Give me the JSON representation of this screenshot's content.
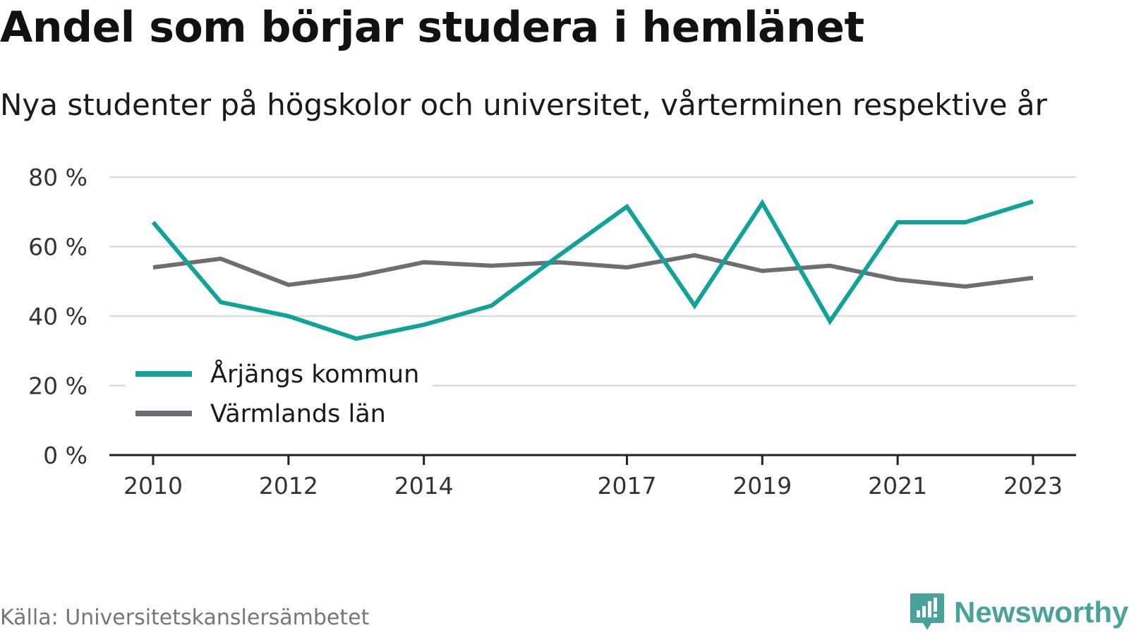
{
  "title": "Andel som börjar studera i hemlänet",
  "subtitle": "Nya studenter på högskolor och universitet, vårterminen respektive år",
  "source": "Källa: Universitetskanslersämbetet",
  "brand": "Newsworthy",
  "chart_data": {
    "type": "line",
    "x": [
      2010,
      2011,
      2012,
      2013,
      2014,
      2015,
      2016,
      2017,
      2018,
      2019,
      2020,
      2021,
      2022,
      2023
    ],
    "x_ticks": [
      "2010",
      "2012",
      "2014",
      "2017",
      "2019",
      "2021",
      "2023"
    ],
    "y_ticks": [
      "0 %",
      "20 %",
      "40 %",
      "60 %",
      "80 %"
    ],
    "ylim": [
      0,
      80
    ],
    "grid": true,
    "legend_position": "bottom-left",
    "series": [
      {
        "name": "Årjängs kommun",
        "color": "#12a398",
        "values": [
          67,
          44,
          40,
          33.5,
          37.5,
          43,
          57.5,
          71.5,
          43,
          72.5,
          38.5,
          67,
          67,
          73
        ]
      },
      {
        "name": "Värmlands län",
        "color": "#6e6d74",
        "values": [
          54,
          56.5,
          49,
          51.5,
          55.5,
          54.5,
          55.5,
          54,
          57.5,
          53,
          54.5,
          50.5,
          48.5,
          51
        ]
      }
    ]
  }
}
